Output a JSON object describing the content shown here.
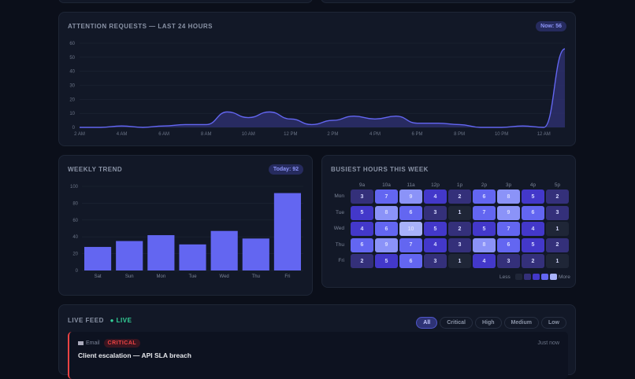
{
  "attention": {
    "title": "ATTENTION REQUESTS — LAST 24 HOURS",
    "badge": "Now: 56"
  },
  "weekly": {
    "title": "WEEKLY TREND",
    "badge": "Today: 92"
  },
  "heatmap": {
    "title": "BUSIEST HOURS THIS WEEK",
    "legend_less": "Less",
    "legend_more": "More",
    "hours": [
      "9a",
      "10a",
      "11a",
      "12p",
      "1p",
      "2p",
      "3p",
      "4p",
      "5p"
    ],
    "days": [
      "Mon",
      "Tue",
      "Wed",
      "Thu",
      "Fri"
    ],
    "values": [
      [
        3,
        7,
        9,
        4,
        2,
        6,
        8,
        5,
        2
      ],
      [
        5,
        8,
        6,
        3,
        1,
        7,
        9,
        6,
        3
      ],
      [
        4,
        6,
        10,
        5,
        2,
        5,
        7,
        4,
        1
      ],
      [
        6,
        9,
        7,
        4,
        3,
        8,
        6,
        5,
        2
      ],
      [
        2,
        5,
        6,
        3,
        1,
        4,
        3,
        2,
        1
      ]
    ],
    "colors": {
      "low": "#1f2637",
      "l2": "#34307a",
      "l3": "#4338ca",
      "l4": "#6366f1",
      "l5": "#8b93f8",
      "max": "#a8b2fb"
    }
  },
  "feed": {
    "title": "LIVE FEED",
    "live": "LIVE",
    "filters": [
      "All",
      "Critical",
      "High",
      "Medium",
      "Low"
    ],
    "items": [
      {
        "channel": "Email",
        "severity": "CRITICAL",
        "time": "Just now",
        "title": "Client escalation — API SLA breach"
      }
    ]
  },
  "colors": {
    "accent": "#6366f1",
    "live": "#34d399",
    "critical": "#ef4444"
  },
  "chart_data": [
    {
      "type": "area",
      "title": "ATTENTION REQUESTS — LAST 24 HOURS",
      "ylim": [
        0,
        60
      ],
      "yticks": [
        0,
        10,
        20,
        30,
        40,
        50,
        60
      ],
      "xtick_labels": [
        "2 AM",
        "4 AM",
        "6 AM",
        "8 AM",
        "10 AM",
        "12 PM",
        "2 PM",
        "4 PM",
        "6 PM",
        "8 PM",
        "10 PM",
        "12 AM"
      ],
      "x": [
        "2 AM",
        "3 AM",
        "4 AM",
        "5 AM",
        "6 AM",
        "7 AM",
        "8 AM",
        "9 AM",
        "10 AM",
        "11 AM",
        "12 PM",
        "1 PM",
        "2 PM",
        "3 PM",
        "4 PM",
        "5 PM",
        "6 PM",
        "7 PM",
        "8 PM",
        "9 PM",
        "10 PM",
        "11 PM",
        "12 AM",
        "1 AM"
      ],
      "values": [
        0,
        0,
        1,
        0,
        1,
        2,
        2,
        11,
        7,
        11,
        6,
        2,
        5,
        8,
        6,
        8,
        3,
        3,
        2,
        0,
        0,
        1,
        0,
        56
      ],
      "grid": true
    },
    {
      "type": "bar",
      "title": "WEEKLY TREND",
      "ylim": [
        0,
        100
      ],
      "yticks": [
        0,
        20,
        40,
        60,
        80,
        100
      ],
      "categories": [
        "Sat",
        "Sun",
        "Mon",
        "Tue",
        "Wed",
        "Thu",
        "Fri"
      ],
      "values": [
        28,
        35,
        42,
        31,
        47,
        38,
        92
      ],
      "grid": true
    }
  ]
}
